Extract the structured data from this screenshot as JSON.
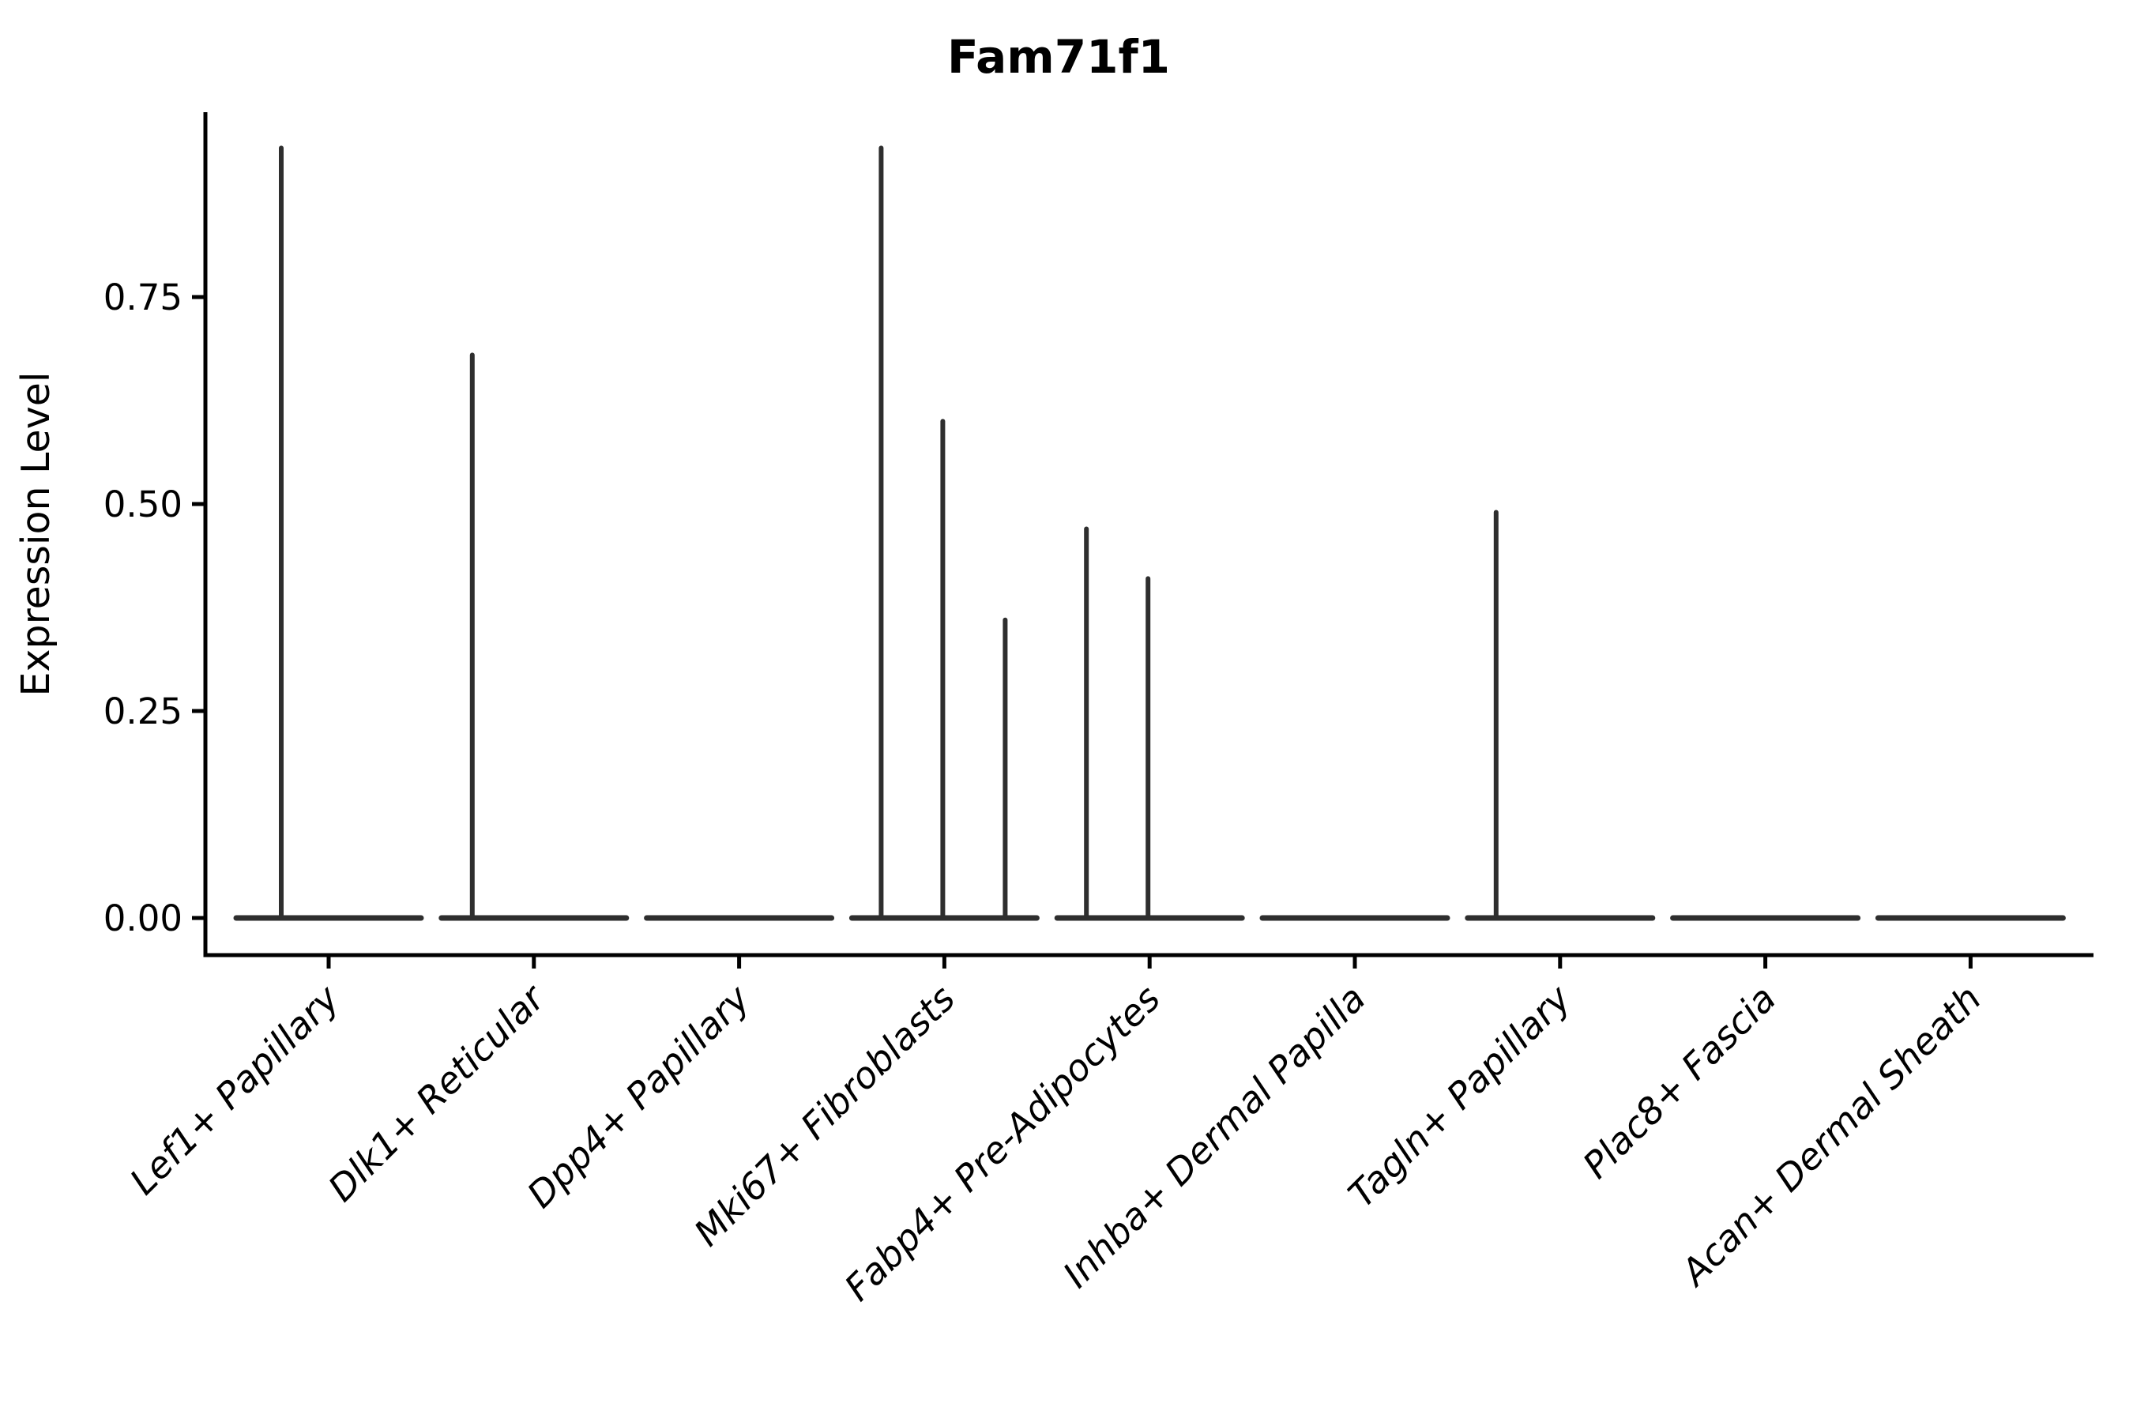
{
  "chart_data": {
    "type": "violin",
    "title": "Fam71f1",
    "xlabel": "",
    "ylabel": "Expression Level",
    "legend": "none",
    "grid": false,
    "background": "#ffffff",
    "ylim": [
      -0.05,
      0.97
    ],
    "y_ticks": [
      {
        "value": 0.0,
        "label": "0.00"
      },
      {
        "value": 0.25,
        "label": "0.25"
      },
      {
        "value": 0.5,
        "label": "0.50"
      },
      {
        "value": 0.75,
        "label": "0.75"
      }
    ],
    "categories": [
      "Lef1+ Papillary",
      "Dlk1+ Reticular",
      "Dpp4+ Papillary",
      "Mki67+ Fibroblasts",
      "Fabp4+ Pre-Adipocytes",
      "Inhba+ Dermal Papilla",
      "Tagln+ Papillary",
      "Plac8+ Fascia",
      "Acan+ Dermal Sheath"
    ],
    "violins": [
      {
        "label": "Lef1+ Papillary",
        "baseline_value": 0,
        "max": 0.93,
        "spikes": [
          {
            "dx": -60,
            "value": 0.93
          }
        ]
      },
      {
        "label": "Dlk1+ Reticular",
        "baseline_value": 0,
        "max": 0.68,
        "spikes": [
          {
            "dx": -78,
            "value": 0.68
          }
        ]
      },
      {
        "label": "Dpp4+ Papillary",
        "baseline_value": 0,
        "max": 0.0,
        "spikes": []
      },
      {
        "label": "Mki67+ Fibroblasts",
        "baseline_value": 0,
        "max": 0.93,
        "spikes": [
          {
            "dx": -80,
            "value": 0.93
          },
          {
            "dx": -2,
            "value": 0.6
          },
          {
            "dx": 77,
            "value": 0.36
          }
        ]
      },
      {
        "label": "Fabp4+ Pre-Adipocytes",
        "baseline_value": 0,
        "max": 0.47,
        "spikes": [
          {
            "dx": -80,
            "value": 0.47
          },
          {
            "dx": -2,
            "value": 0.41
          }
        ]
      },
      {
        "label": "Inhba+ Dermal Papilla",
        "baseline_value": 0,
        "max": 0.0,
        "spikes": []
      },
      {
        "label": "Tagln+ Papillary",
        "baseline_value": 0,
        "max": 0.49,
        "spikes": [
          {
            "dx": -81,
            "value": 0.49
          }
        ]
      },
      {
        "label": "Plac8+ Fascia",
        "baseline_value": 0,
        "max": 0.0,
        "spikes": []
      },
      {
        "label": "Acan+ Dermal Sheath",
        "baseline_value": 0,
        "max": 0.0,
        "spikes": []
      }
    ],
    "colors": {
      "ink": "#000000",
      "violin_stroke": "#2e2e2e",
      "background": "#ffffff"
    }
  }
}
